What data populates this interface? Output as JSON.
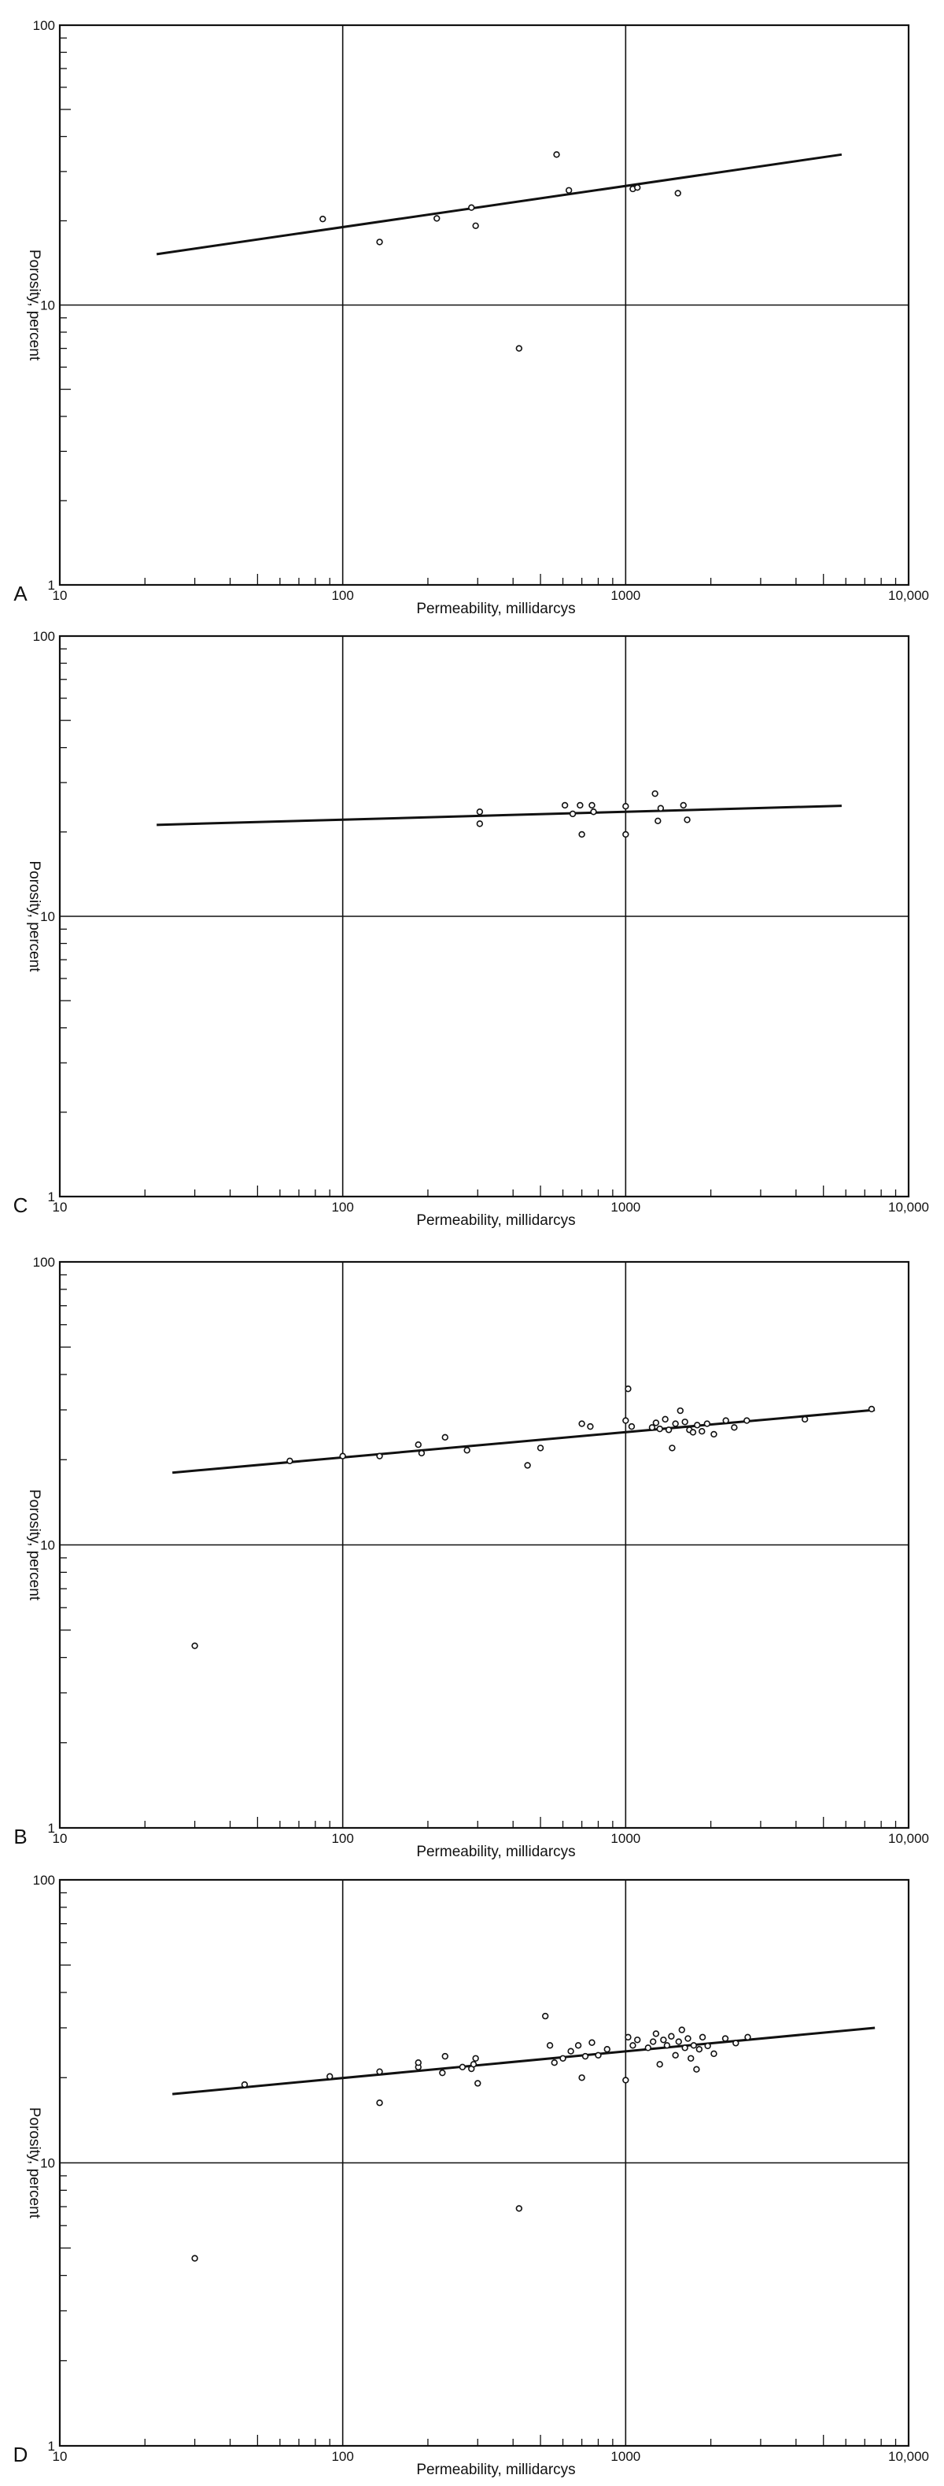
{
  "figure": {
    "panels": [
      "A",
      "C",
      "B",
      "D"
    ]
  },
  "chart_data": [
    {
      "type": "scatter",
      "panel_label": "A",
      "xlabel": "Permeability, millidarcys",
      "ylabel": "Porosity, percent",
      "x_scale": "log",
      "y_scale": "log",
      "xlim": [
        10,
        10000
      ],
      "ylim": [
        1,
        100
      ],
      "x_ticks": [
        "10",
        "100",
        "1000",
        "10,000"
      ],
      "y_ticks": [
        "1",
        "10",
        "100"
      ],
      "grid": true,
      "points": [
        [
          85,
          20.3
        ],
        [
          135,
          16.8
        ],
        [
          215,
          20.4
        ],
        [
          285,
          22.3
        ],
        [
          295,
          19.2
        ],
        [
          420,
          7.0
        ],
        [
          570,
          34.5
        ],
        [
          630,
          25.7
        ],
        [
          1060,
          26.0
        ],
        [
          1100,
          26.3
        ],
        [
          1530,
          25.1
        ]
      ],
      "fit_line": [
        [
          22,
          15.2
        ],
        [
          5800,
          34.5
        ]
      ]
    },
    {
      "type": "scatter",
      "panel_label": "C",
      "xlabel": "Permeability, millidarcys",
      "ylabel": "Porosity, percent",
      "x_scale": "log",
      "y_scale": "log",
      "xlim": [
        10,
        10000
      ],
      "ylim": [
        1,
        100
      ],
      "x_ticks": [
        "10",
        "100",
        "1000",
        "10,000"
      ],
      "y_ticks": [
        "1",
        "10",
        "100"
      ],
      "grid": true,
      "points": [
        [
          305,
          23.6
        ],
        [
          305,
          21.4
        ],
        [
          610,
          24.9
        ],
        [
          650,
          23.2
        ],
        [
          690,
          24.9
        ],
        [
          700,
          19.6
        ],
        [
          760,
          24.9
        ],
        [
          770,
          23.6
        ],
        [
          1000,
          24.7
        ],
        [
          1000,
          19.6
        ],
        [
          1270,
          27.4
        ],
        [
          1300,
          21.9
        ],
        [
          1330,
          24.3
        ],
        [
          1600,
          24.9
        ],
        [
          1650,
          22.1
        ]
      ],
      "fit_line": [
        [
          22,
          21.2
        ],
        [
          5800,
          24.8
        ]
      ]
    },
    {
      "type": "scatter",
      "panel_label": "B",
      "xlabel": "Permeability, millidarcys",
      "ylabel": "Porosity, percent",
      "x_scale": "log",
      "y_scale": "log",
      "xlim": [
        10,
        10000
      ],
      "ylim": [
        1,
        100
      ],
      "x_ticks": [
        "10",
        "100",
        "1000",
        "10,000"
      ],
      "y_ticks": [
        "1",
        "10",
        "100"
      ],
      "grid": true,
      "points": [
        [
          30,
          4.4
        ],
        [
          65,
          19.8
        ],
        [
          100,
          20.6
        ],
        [
          135,
          20.6
        ],
        [
          185,
          22.6
        ],
        [
          190,
          21.1
        ],
        [
          230,
          24.0
        ],
        [
          275,
          21.6
        ],
        [
          450,
          19.1
        ],
        [
          500,
          22.0
        ],
        [
          700,
          26.8
        ],
        [
          750,
          26.2
        ],
        [
          1000,
          27.5
        ],
        [
          1020,
          35.6
        ],
        [
          1050,
          26.2
        ],
        [
          1240,
          26.0
        ],
        [
          1280,
          27.0
        ],
        [
          1320,
          25.7
        ],
        [
          1380,
          27.8
        ],
        [
          1420,
          25.5
        ],
        [
          1460,
          22.0
        ],
        [
          1500,
          26.8
        ],
        [
          1560,
          29.8
        ],
        [
          1620,
          27.2
        ],
        [
          1680,
          25.5
        ],
        [
          1730,
          25.0
        ],
        [
          1790,
          26.5
        ],
        [
          1860,
          25.2
        ],
        [
          1940,
          26.8
        ],
        [
          2050,
          24.6
        ],
        [
          2260,
          27.5
        ],
        [
          2420,
          26.0
        ],
        [
          2680,
          27.5
        ],
        [
          4300,
          27.8
        ],
        [
          7400,
          30.2
        ]
      ],
      "fit_line": [
        [
          25,
          18.0
        ],
        [
          7600,
          30.0
        ]
      ]
    },
    {
      "type": "scatter",
      "panel_label": "D",
      "xlabel": "Permeability, millidarcys",
      "ylabel": "Porosity, percent",
      "x_scale": "log",
      "y_scale": "log",
      "xlim": [
        10,
        10000
      ],
      "ylim": [
        1,
        100
      ],
      "x_ticks": [
        "10",
        "100",
        "1000",
        "10,000"
      ],
      "y_ticks": [
        "1",
        "10",
        "100"
      ],
      "grid": true,
      "points": [
        [
          30,
          4.6
        ],
        [
          45,
          18.9
        ],
        [
          90,
          20.2
        ],
        [
          135,
          16.3
        ],
        [
          135,
          21.0
        ],
        [
          185,
          21.8
        ],
        [
          185,
          22.6
        ],
        [
          225,
          20.8
        ],
        [
          230,
          23.8
        ],
        [
          265,
          21.8
        ],
        [
          285,
          21.5
        ],
        [
          290,
          22.3
        ],
        [
          295,
          23.4
        ],
        [
          300,
          19.1
        ],
        [
          420,
          6.9
        ],
        [
          520,
          33.0
        ],
        [
          540,
          26.0
        ],
        [
          560,
          22.6
        ],
        [
          600,
          23.4
        ],
        [
          640,
          24.8
        ],
        [
          680,
          26.0
        ],
        [
          700,
          20.0
        ],
        [
          720,
          23.8
        ],
        [
          760,
          26.6
        ],
        [
          800,
          24.0
        ],
        [
          860,
          25.2
        ],
        [
          1000,
          19.6
        ],
        [
          1020,
          27.8
        ],
        [
          1060,
          26.0
        ],
        [
          1100,
          27.2
        ],
        [
          1200,
          25.5
        ],
        [
          1250,
          26.8
        ],
        [
          1280,
          28.6
        ],
        [
          1320,
          22.3
        ],
        [
          1360,
          27.2
        ],
        [
          1400,
          26.0
        ],
        [
          1450,
          28.0
        ],
        [
          1500,
          24.0
        ],
        [
          1540,
          26.8
        ],
        [
          1580,
          29.5
        ],
        [
          1620,
          25.5
        ],
        [
          1660,
          27.5
        ],
        [
          1700,
          23.4
        ],
        [
          1740,
          26.0
        ],
        [
          1780,
          21.4
        ],
        [
          1820,
          25.2
        ],
        [
          1870,
          27.8
        ],
        [
          1950,
          25.9
        ],
        [
          2050,
          24.3
        ],
        [
          2250,
          27.5
        ],
        [
          2450,
          26.5
        ],
        [
          2700,
          27.8
        ]
      ],
      "fit_line": [
        [
          25,
          17.5
        ],
        [
          7600,
          30.0
        ]
      ]
    }
  ]
}
